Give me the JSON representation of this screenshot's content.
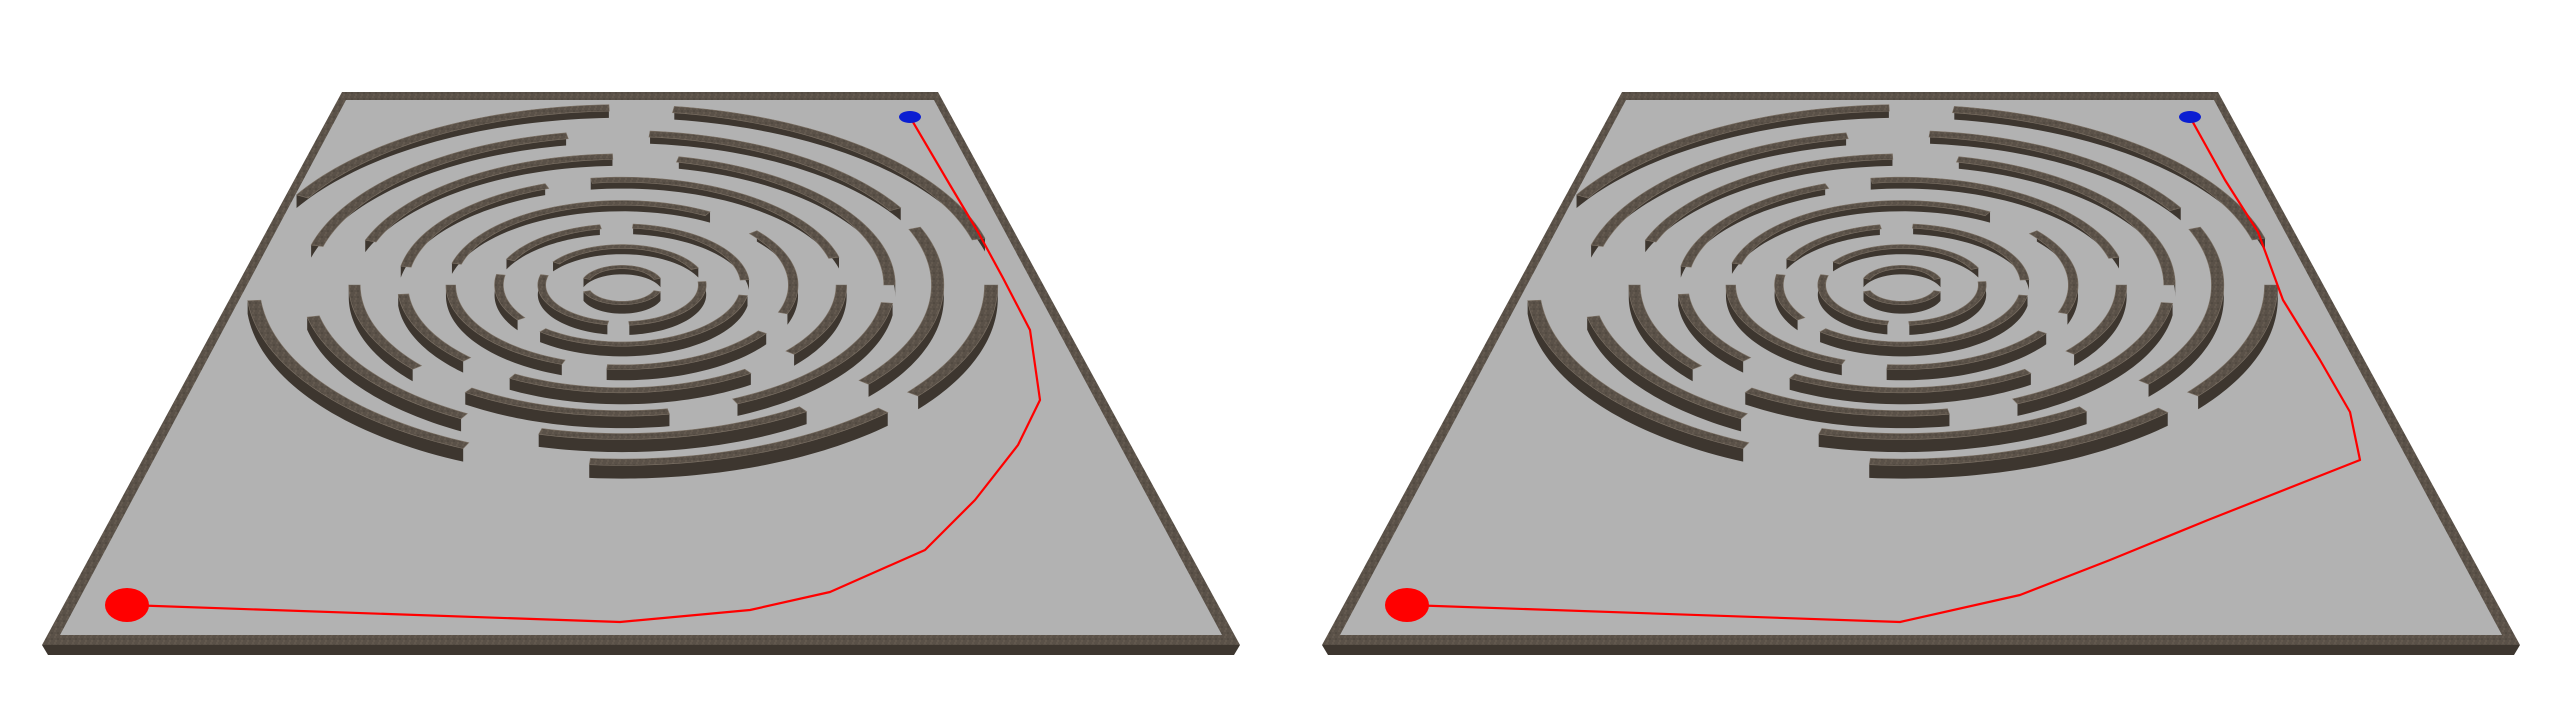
{
  "scene": {
    "background": "#ffffff",
    "floor_color": "#b2b2b2",
    "wall_color": "#5a5148",
    "wall_highlight": "#7d7266",
    "wall_shadow": "#3d362f"
  },
  "start_marker": {
    "name": "start",
    "color": "#ff0000"
  },
  "goal_marker": {
    "name": "goal",
    "color": "#0a1ed2"
  },
  "path": {
    "color": "#ff0000"
  },
  "views": [
    {
      "name": "left-view"
    },
    {
      "name": "right-view"
    }
  ]
}
